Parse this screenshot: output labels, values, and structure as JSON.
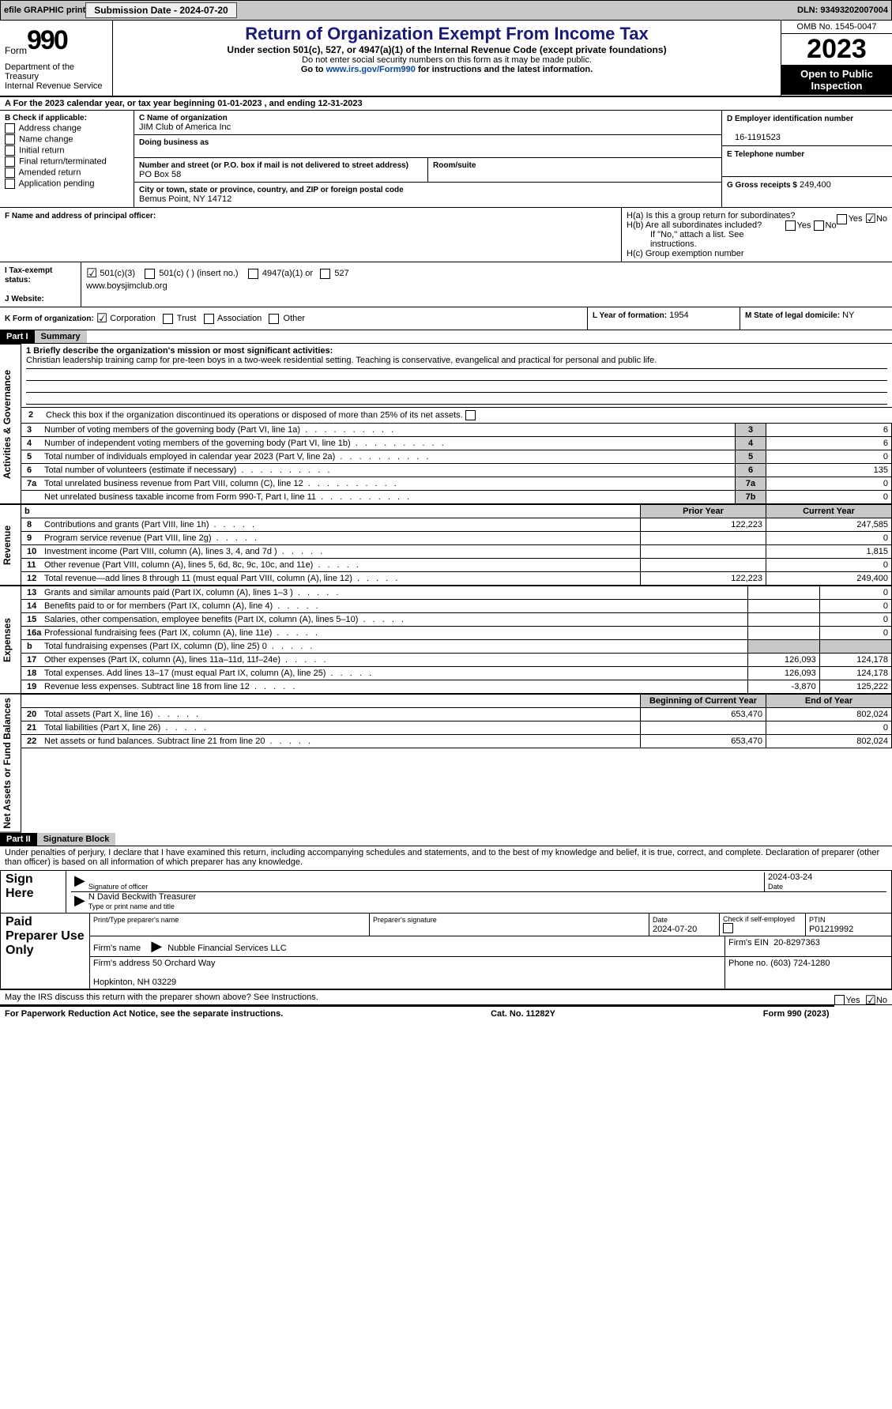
{
  "topbar": {
    "efile": "efile GRAPHIC print",
    "submission_label": "Submission Date - 2024-07-20",
    "dln": "DLN: 93493202007004"
  },
  "header": {
    "form": "Form",
    "num": "990",
    "dept": "Department of the Treasury\nInternal Revenue Service",
    "title": "Return of Organization Exempt From Income Tax",
    "sub": "Under section 501(c), 527, or 4947(a)(1) of the Internal Revenue Code (except private foundations)",
    "note1": "Do not enter social security numbers on this form as it may be made public.",
    "note2_pre": "Go to ",
    "note2_link": "www.irs.gov/Form990",
    "note2_post": " for instructions and the latest information.",
    "omb": "OMB No. 1545-0047",
    "year": "2023",
    "open": "Open to Public Inspection"
  },
  "a": "A For the 2023 calendar year, or tax year beginning 01-01-2023    , and ending 12-31-2023",
  "b": {
    "label": "B Check if applicable:",
    "opts": [
      "Address change",
      "Name change",
      "Initial return",
      "Final return/terminated",
      "Amended return",
      "Application pending"
    ]
  },
  "c": {
    "name_label": "C Name of organization",
    "name": "JIM Club of America Inc",
    "dba_label": "Doing business as",
    "dba": "",
    "street_label": "Number and street (or P.O. box if mail is not delivered to street address)",
    "street": "PO Box 58",
    "suite_label": "Room/suite",
    "suite": "",
    "city_label": "City or town, state or province, country, and ZIP or foreign postal code",
    "city": "Bemus Point, NY  14712"
  },
  "d": {
    "label": "D Employer identification number",
    "val": "16-1191523"
  },
  "e": {
    "label": "E Telephone number",
    "val": ""
  },
  "g": {
    "label": "G Gross receipts $",
    "val": "249,400"
  },
  "f": {
    "label": "F  Name and address of principal officer:",
    "val": ""
  },
  "h": {
    "a": "H(a)  Is this a group return for subordinates?",
    "b": "H(b)  Are all subordinates included?",
    "b_note": "If \"No,\" attach a list. See instructions.",
    "c": "H(c)  Group exemption number",
    "a_no": true,
    "yes": "Yes",
    "no": "No"
  },
  "i": {
    "label": "I  Tax-exempt status:",
    "opts": [
      "501(c)(3)",
      "501(c) (  ) (insert no.)",
      "4947(a)(1) or",
      "527"
    ]
  },
  "j": {
    "label": "J  Website:",
    "val": "www.boysjimclub.org"
  },
  "k": {
    "label": "K Form of organization:",
    "opts": [
      "Corporation",
      "Trust",
      "Association",
      "Other"
    ]
  },
  "l": {
    "label": "L Year of formation:",
    "val": "1954"
  },
  "m": {
    "label": "M State of legal domicile:",
    "val": "NY"
  },
  "part1": {
    "hdr": "Part I",
    "title": "Summary",
    "q1_label": "1  Briefly describe the organization's mission or most significant activities:",
    "q1": "Christian leadership training camp for pre-teen boys in a two-week residential setting. Teaching is conservative, evangelical and practical for personal and public life.",
    "q2": "Check this box       if the organization discontinued its operations or disposed of more than 25% of its net assets.",
    "gov_rows": [
      {
        "n": "3",
        "t": "Number of voting members of the governing body (Part VI, line 1a)",
        "box": "3",
        "v": "6"
      },
      {
        "n": "4",
        "t": "Number of independent voting members of the governing body (Part VI, line 1b)",
        "box": "4",
        "v": "6"
      },
      {
        "n": "5",
        "t": "Total number of individuals employed in calendar year 2023 (Part V, line 2a)",
        "box": "5",
        "v": "0"
      },
      {
        "n": "6",
        "t": "Total number of volunteers (estimate if necessary)",
        "box": "6",
        "v": "135"
      },
      {
        "n": "7a",
        "t": "Total unrelated business revenue from Part VIII, column (C), line 12",
        "box": "7a",
        "v": "0"
      },
      {
        "n": "",
        "t": "Net unrelated business taxable income from Form 990-T, Part I, line 11",
        "box": "7b",
        "v": "0"
      }
    ],
    "col_hdr_prior": "Prior Year",
    "col_hdr_curr": "Current Year",
    "rev_rows": [
      {
        "n": "8",
        "t": "Contributions and grants (Part VIII, line 1h)",
        "p": "122,223",
        "c": "247,585"
      },
      {
        "n": "9",
        "t": "Program service revenue (Part VIII, line 2g)",
        "p": "",
        "c": "0"
      },
      {
        "n": "10",
        "t": "Investment income (Part VIII, column (A), lines 3, 4, and 7d )",
        "p": "",
        "c": "1,815"
      },
      {
        "n": "11",
        "t": "Other revenue (Part VIII, column (A), lines 5, 6d, 8c, 9c, 10c, and 11e)",
        "p": "",
        "c": "0"
      },
      {
        "n": "12",
        "t": "Total revenue—add lines 8 through 11 (must equal Part VIII, column (A), line 12)",
        "p": "122,223",
        "c": "249,400"
      }
    ],
    "exp_rows": [
      {
        "n": "13",
        "t": "Grants and similar amounts paid (Part IX, column (A), lines 1–3 )",
        "p": "",
        "c": "0"
      },
      {
        "n": "14",
        "t": "Benefits paid to or for members (Part IX, column (A), line 4)",
        "p": "",
        "c": "0"
      },
      {
        "n": "15",
        "t": "Salaries, other compensation, employee benefits (Part IX, column (A), lines 5–10)",
        "p": "",
        "c": "0"
      },
      {
        "n": "16a",
        "t": "Professional fundraising fees (Part IX, column (A), line 11e)",
        "p": "",
        "c": "0"
      },
      {
        "n": "b",
        "t": "Total fundraising expenses (Part IX, column (D), line 25) 0",
        "p": "—",
        "c": "—"
      },
      {
        "n": "17",
        "t": "Other expenses (Part IX, column (A), lines 11a–11d, 11f–24e)",
        "p": "126,093",
        "c": "124,178"
      },
      {
        "n": "18",
        "t": "Total expenses. Add lines 13–17 (must equal Part IX, column (A), line 25)",
        "p": "126,093",
        "c": "124,178"
      },
      {
        "n": "19",
        "t": "Revenue less expenses. Subtract line 18 from line 12",
        "p": "-3,870",
        "c": "125,222"
      }
    ],
    "net_hdr_b": "Beginning of Current Year",
    "net_hdr_e": "End of Year",
    "net_rows": [
      {
        "n": "20",
        "t": "Total assets (Part X, line 16)",
        "p": "653,470",
        "c": "802,024"
      },
      {
        "n": "21",
        "t": "Total liabilities (Part X, line 26)",
        "p": "",
        "c": "0"
      },
      {
        "n": "22",
        "t": "Net assets or fund balances. Subtract line 21 from line 20",
        "p": "653,470",
        "c": "802,024"
      }
    ]
  },
  "part2": {
    "hdr": "Part II",
    "title": "Signature Block",
    "decl": "Under penalties of perjury, I declare that I have examined this return, including accompanying schedules and statements, and to the best of my knowledge and belief, it is true, correct, and complete. Declaration of preparer (other than officer) is based on all information of which preparer has any knowledge.",
    "sign_here": "Sign Here",
    "sig_officer": "Signature of officer",
    "date": "Date",
    "date_v": "2024-03-24",
    "name_title": "N David Beckwith  Treasurer",
    "type_label": "Type or print name and title",
    "paid": "Paid Preparer Use Only",
    "prep_name_l": "Print/Type preparer's name",
    "prep_sig_l": "Preparer's signature",
    "prep_date_l": "Date",
    "prep_date": "2024-07-20",
    "self_l": "Check       if self-employed",
    "ptin_l": "PTIN",
    "ptin": "P01219992",
    "firm_name_l": "Firm's name",
    "firm_name": "Nubble Financial Services LLC",
    "firm_ein_l": "Firm's EIN",
    "firm_ein": "20-8297363",
    "firm_addr_l": "Firm's address",
    "firm_addr": "50 Orchard Way\n\nHopkinton, NH  03229",
    "phone_l": "Phone no.",
    "phone": "(603) 724-1280",
    "irs_discuss": "May the IRS discuss this return with the preparer shown above? See Instructions.",
    "no": true
  },
  "footer": {
    "a": "For Paperwork Reduction Act Notice, see the separate instructions.",
    "b": "Cat. No. 11282Y",
    "c": "Form 990 (2023)"
  },
  "sides": {
    "gov": "Activities & Governance",
    "rev": "Revenue",
    "exp": "Expenses",
    "net": "Net Assets or Fund Balances"
  }
}
